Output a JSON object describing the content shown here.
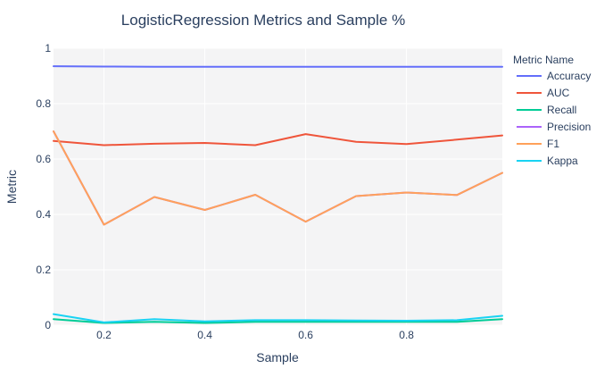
{
  "chart_data": {
    "type": "line",
    "title": "LogisticRegression Metrics and Sample %",
    "xlabel": "Sample",
    "ylabel": "Metric",
    "xlim": [
      0.1,
      0.99
    ],
    "ylim": [
      0,
      1
    ],
    "x_ticks": [
      0.2,
      0.4,
      0.6,
      0.8
    ],
    "x_tick_labels": [
      "0.2",
      "0.4",
      "0.6",
      "0.8"
    ],
    "y_ticks": [
      0,
      0.2,
      0.4,
      0.6,
      0.8,
      1
    ],
    "y_tick_labels": [
      "0",
      "0.2",
      "0.4",
      "0.6",
      "0.8",
      "1"
    ],
    "grid": true,
    "plot_background": "#f4f4f5",
    "legend": {
      "title": "Metric Name",
      "placement": "right"
    },
    "x": [
      0.1,
      0.2,
      0.3,
      0.4,
      0.5,
      0.6,
      0.7,
      0.8,
      0.9,
      0.99
    ],
    "series": [
      {
        "name": "Accuracy",
        "color": "#636efa",
        "values": [
          0.935,
          0.934,
          0.933,
          0.933,
          0.933,
          0.933,
          0.933,
          0.933,
          0.933,
          0.933
        ]
      },
      {
        "name": "AUC",
        "color": "#ef553b",
        "values": [
          0.665,
          0.65,
          0.655,
          0.658,
          0.65,
          0.69,
          0.662,
          0.654,
          0.67,
          0.685
        ]
      },
      {
        "name": "Recall",
        "color": "#00cc96",
        "values": [
          0.022,
          0.008,
          0.012,
          0.008,
          0.012,
          0.012,
          0.012,
          0.012,
          0.012,
          0.022
        ]
      },
      {
        "name": "Precision",
        "color": "#ab63fa",
        "values": [
          0.7,
          0.363,
          0.463,
          0.416,
          0.471,
          0.374,
          0.466,
          0.479,
          0.47,
          0.55
        ]
      },
      {
        "name": "F1",
        "color": "#ffa15a",
        "values": [
          0.7,
          0.363,
          0.463,
          0.416,
          0.471,
          0.374,
          0.466,
          0.479,
          0.47,
          0.55
        ]
      },
      {
        "name": "Kappa",
        "color": "#19d3f3",
        "values": [
          0.04,
          0.01,
          0.022,
          0.014,
          0.018,
          0.018,
          0.017,
          0.016,
          0.018,
          0.034
        ]
      }
    ]
  }
}
